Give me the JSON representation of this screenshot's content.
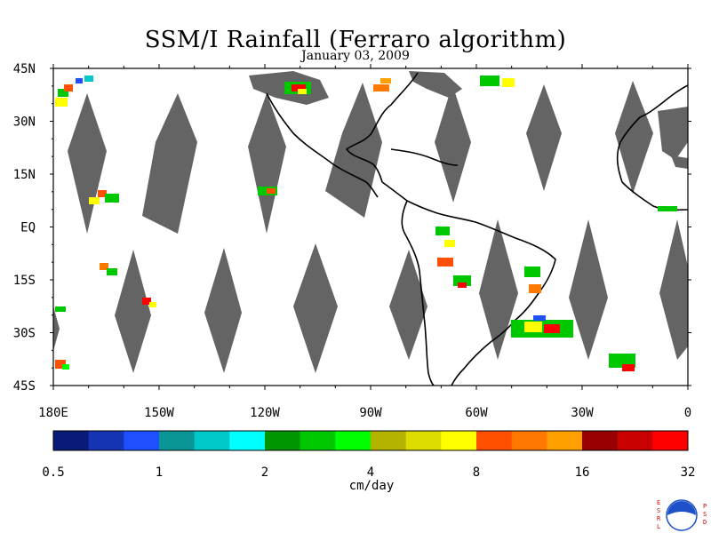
{
  "title": "SSM/I Rainfall (Ferraro algorithm)",
  "date": "January 03, 2009",
  "lat_labels": [
    "45N",
    "30N",
    "15N",
    "EQ",
    "15S",
    "30S",
    "45S"
  ],
  "lon_labels": [
    "180E",
    "150W",
    "120W",
    "90W",
    "60W",
    "30W",
    "0"
  ],
  "colorbar": {
    "unit": "cm/day",
    "tick_labels": [
      "0.5",
      "1",
      "2",
      "4",
      "8",
      "16",
      "32"
    ],
    "colors": [
      "#0a1a78",
      "#1434b4",
      "#1e50ff",
      "#0a9696",
      "#00c8c8",
      "#00ffff",
      "#009600",
      "#00c800",
      "#00ff00",
      "#b4b400",
      "#dcdc00",
      "#ffff00",
      "#ff5000",
      "#ff7800",
      "#ffa000",
      "#960000",
      "#c80000",
      "#ff0000"
    ]
  },
  "map_colors": {
    "no_data": "#646464",
    "coast": "#000000",
    "background": "#ffffff"
  },
  "logo": {
    "left_text": "ESRL",
    "right_text": "PSD",
    "center_text": "NOAA"
  }
}
